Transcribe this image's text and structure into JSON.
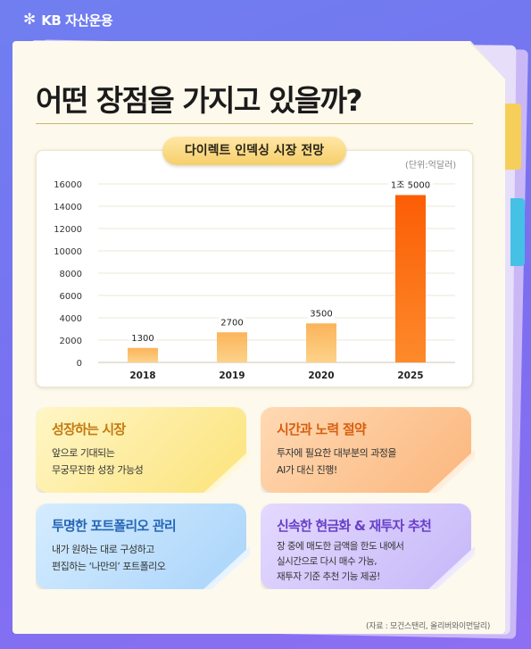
{
  "brand": {
    "logo_symbol": "✻",
    "name": "KB 자산운용"
  },
  "title": "어떤 장점을 가지고 있을까?",
  "chart_data": {
    "type": "bar",
    "title": "다이렉트 인덱싱 시장 전망",
    "unit_note": "(단위:억달러)",
    "categories": [
      "2018",
      "2019",
      "2020",
      "2025"
    ],
    "values": [
      1300,
      2700,
      3500,
      15000
    ],
    "data_labels": [
      "1300",
      "2700",
      "3500",
      "1조 5000"
    ],
    "ylim": [
      0,
      16000
    ],
    "yticks": [
      0,
      2000,
      4000,
      6000,
      8000,
      10000,
      12000,
      14000,
      16000
    ],
    "grid": true,
    "highlight_color": "#fc6a0a",
    "bar_color": "#fbb45a"
  },
  "cards": [
    {
      "title": "성장하는 시장",
      "lines": [
        "앞으로 기대되는",
        "무궁무진한 성장 가능성"
      ]
    },
    {
      "title": "시간과 노력 절약",
      "lines": [
        "투자에 필요한 대부분의 과정을",
        "AI가 대신 진행!"
      ]
    },
    {
      "title": "투명한 포트폴리오 관리",
      "lines": [
        "내가 원하는 대로 구성하고",
        "편집하는 ‘나만의’ 포트폴리오"
      ]
    },
    {
      "title": "신속한 현금화 & 재투자 추천",
      "lines": [
        "장 중에 매도한 금액을 한도 내에서",
        "실시간으로 다시 매수 가능,",
        "재투자 기준 추천 기능 제공!"
      ]
    }
  ],
  "source": "(자료 : 모건스탠리, 올리버와이먼달리)"
}
